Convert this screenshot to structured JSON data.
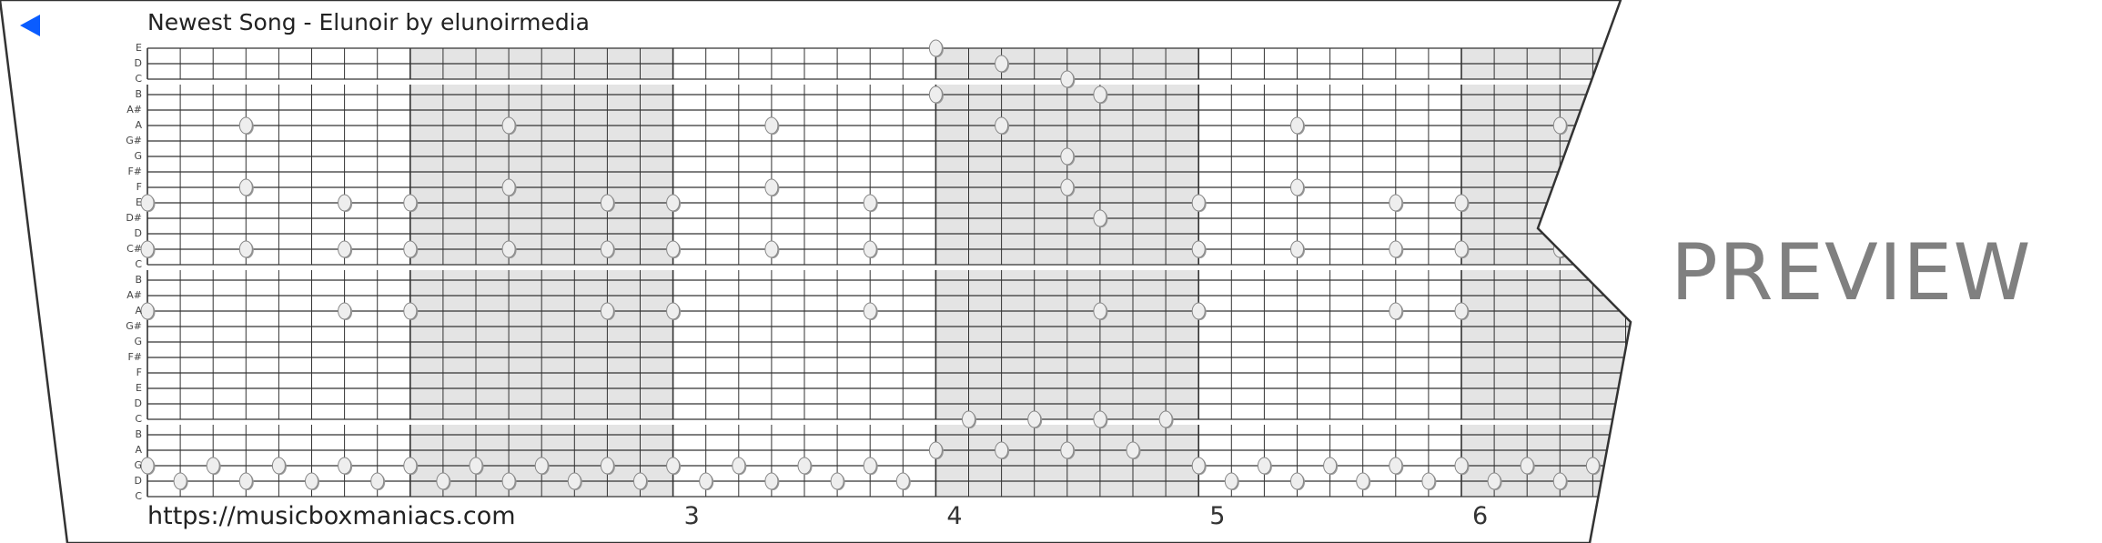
{
  "header": {
    "title": "Newest Song - Elunoir by elunoirmedia",
    "back_icon": "back-triangle-icon",
    "accent": "#0a5cff"
  },
  "footer": {
    "url": "https://musicboxmaniacs.com"
  },
  "watermark": "PREVIEW",
  "measures": [
    "3",
    "4",
    "5",
    "6"
  ],
  "strip": {
    "note_labels": [
      "E",
      "D",
      "C",
      "B",
      "A#",
      "A",
      "G#",
      "G",
      "F#",
      "F",
      "E",
      "D#",
      "D",
      "C#",
      "C",
      "B",
      "A#",
      "A",
      "G#",
      "G",
      "F#",
      "F",
      "E",
      "D",
      "C",
      "B",
      "A",
      "G",
      "D",
      "C"
    ],
    "beats_per_measure": 8,
    "shaded_measures": [
      1,
      3,
      5
    ],
    "shade_color": "#e4e4e4",
    "notes": [
      [
        0,
        24
      ],
      [
        1,
        26
      ],
      [
        2,
        28
      ],
      [
        3,
        24
      ],
      [
        3,
        29
      ],
      [
        5,
        3
      ],
      [
        5,
        11
      ],
      [
        5,
        19
      ],
      [
        5,
        26
      ],
      [
        5,
        35
      ],
      [
        5,
        43
      ],
      [
        7,
        28
      ],
      [
        9,
        3
      ],
      [
        9,
        11
      ],
      [
        9,
        19
      ],
      [
        9,
        28
      ],
      [
        9,
        35
      ],
      [
        9,
        43
      ],
      [
        10,
        0
      ],
      [
        10,
        6
      ],
      [
        10,
        8
      ],
      [
        10,
        14
      ],
      [
        10,
        16
      ],
      [
        10,
        22
      ],
      [
        10,
        32
      ],
      [
        10,
        38
      ],
      [
        10,
        40
      ],
      [
        11,
        29
      ],
      [
        13,
        0
      ],
      [
        13,
        3
      ],
      [
        13,
        6
      ],
      [
        13,
        8
      ],
      [
        13,
        11
      ],
      [
        13,
        14
      ],
      [
        13,
        16
      ],
      [
        13,
        19
      ],
      [
        13,
        22
      ],
      [
        13,
        32
      ],
      [
        13,
        35
      ],
      [
        13,
        38
      ],
      [
        13,
        40
      ],
      [
        13,
        43
      ],
      [
        17,
        0
      ],
      [
        17,
        6
      ],
      [
        17,
        8
      ],
      [
        17,
        14
      ],
      [
        17,
        16
      ],
      [
        17,
        22
      ],
      [
        17,
        29
      ],
      [
        17,
        32
      ],
      [
        17,
        38
      ],
      [
        17,
        40
      ],
      [
        24,
        25
      ],
      [
        24,
        27
      ],
      [
        24,
        29
      ],
      [
        24,
        31
      ],
      [
        26,
        24
      ],
      [
        26,
        26
      ],
      [
        26,
        28
      ],
      [
        26,
        30
      ],
      [
        27,
        0
      ],
      [
        27,
        2
      ],
      [
        27,
        4
      ],
      [
        27,
        6
      ],
      [
        27,
        8
      ],
      [
        27,
        10
      ],
      [
        27,
        12
      ],
      [
        27,
        14
      ],
      [
        27,
        16
      ],
      [
        27,
        18
      ],
      [
        27,
        20
      ],
      [
        27,
        22
      ],
      [
        27,
        32
      ],
      [
        27,
        34
      ],
      [
        27,
        36
      ],
      [
        27,
        38
      ],
      [
        27,
        40
      ],
      [
        27,
        42
      ],
      [
        27,
        44
      ],
      [
        28,
        1
      ],
      [
        28,
        3
      ],
      [
        28,
        5
      ],
      [
        28,
        7
      ],
      [
        28,
        9
      ],
      [
        28,
        11
      ],
      [
        28,
        13
      ],
      [
        28,
        15
      ],
      [
        28,
        17
      ],
      [
        28,
        19
      ],
      [
        28,
        21
      ],
      [
        28,
        23
      ],
      [
        28,
        33
      ],
      [
        28,
        35
      ],
      [
        28,
        37
      ],
      [
        28,
        39
      ],
      [
        28,
        41
      ],
      [
        28,
        43
      ]
    ]
  }
}
